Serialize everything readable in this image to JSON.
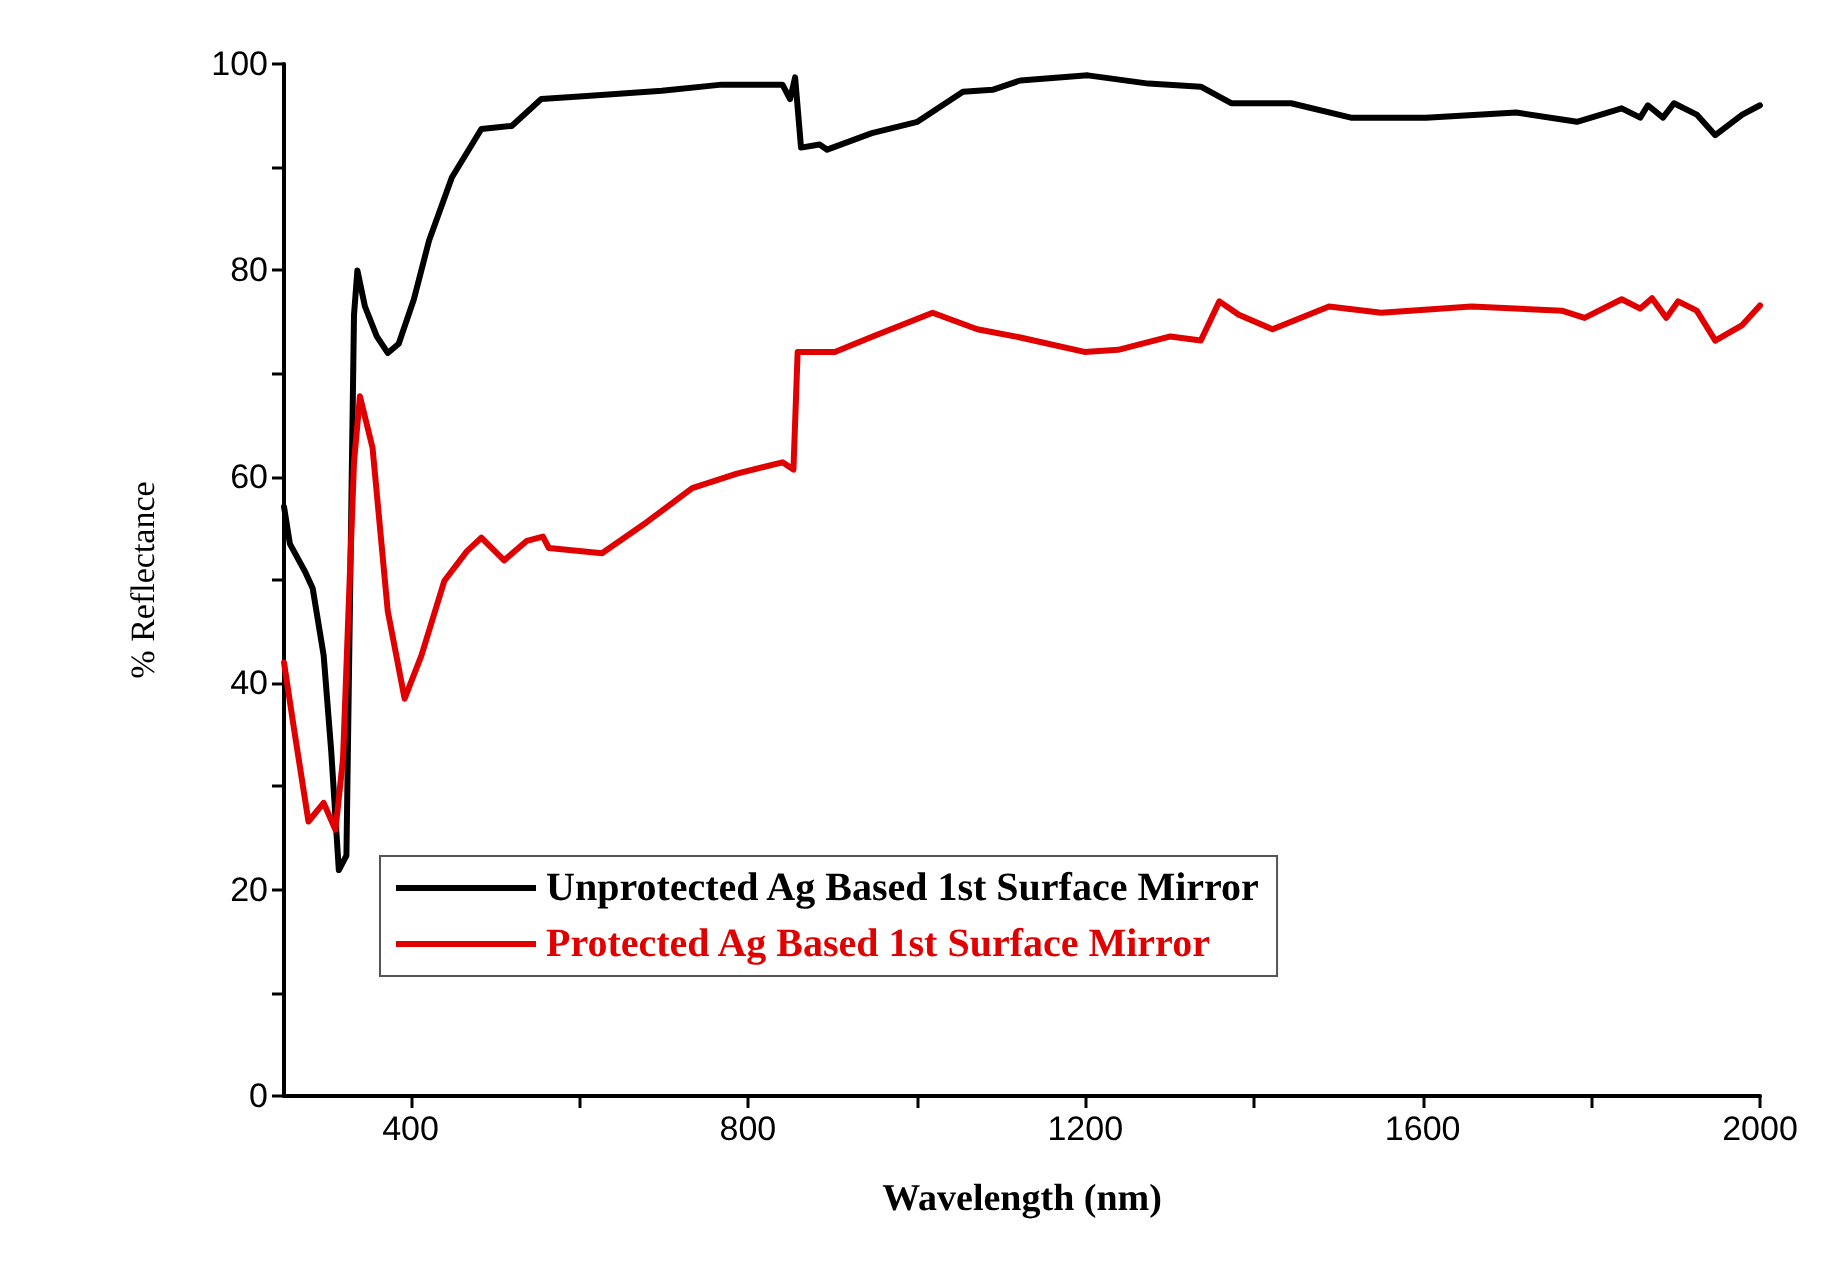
{
  "chart_data": {
    "type": "line",
    "xlabel": "Wavelength (nm)",
    "ylabel": "% Reflectance",
    "xlim": [
      250,
      2000
    ],
    "xticks": [
      400,
      {
        "value": 600,
        "label": null
      },
      800,
      {
        "value": 1000,
        "label": null
      },
      1200,
      {
        "value": 1400,
        "label": null
      },
      1600,
      {
        "value": 1800,
        "label": null
      },
      2000
    ],
    "ylim": [
      0,
      100
    ],
    "yticks": [
      0,
      {
        "value": 10,
        "label": null
      },
      20,
      {
        "value": 30,
        "label": null
      },
      40,
      {
        "value": 50,
        "label": null
      },
      60,
      {
        "value": 70,
        "label": null
      },
      80,
      {
        "value": 90,
        "label": null
      },
      100
    ],
    "grid": false,
    "legend": "bottom left",
    "marker": "none",
    "line_style": "solid",
    "series": [
      {
        "name": "Unprotected Ag Based 1st Surface Mirror",
        "color": "#000000",
        "x": [
          250,
          257,
          275,
          284,
          297,
          306,
          315,
          324,
          333,
          337,
          346,
          360,
          373,
          386,
          404,
          422,
          449,
          484,
          520,
          555,
          609,
          698,
          769,
          841,
          850,
          856,
          863,
          885,
          894,
          947,
          1001,
          1055,
          1090,
          1123,
          1203,
          1275,
          1337,
          1373,
          1444,
          1515,
          1604,
          1711,
          1783,
          1836,
          1858,
          1867,
          1885,
          1898,
          1925,
          1947,
          1979,
          2000
        ],
        "values": [
          57.1,
          53.5,
          50.8,
          49.2,
          42.7,
          33.4,
          21.9,
          23.3,
          75.7,
          80,
          76.5,
          73.6,
          72,
          72.9,
          77.2,
          82.9,
          89,
          93.7,
          94,
          96.6,
          96.9,
          97.4,
          98,
          98,
          96.6,
          98.7,
          91.9,
          92.2,
          91.7,
          93.3,
          94.4,
          97.3,
          97.5,
          98.4,
          98.9,
          98.1,
          97.8,
          96.2,
          96.2,
          94.8,
          94.8,
          95.3,
          94.4,
          95.7,
          94.8,
          96,
          94.8,
          96.2,
          95.1,
          93.1,
          95.1,
          96
        ]
      },
      {
        "name": "Protected Ag Based 1st Surface Mirror",
        "color": "#e00000",
        "x": [
          250,
          262,
          279,
          297,
          311,
          320,
          333,
          340,
          355,
          373,
          393,
          413,
          440,
          467,
          484,
          511,
          538,
          557,
          564,
          627,
          680,
          734,
          787,
          841,
          854,
          859,
          903,
          948,
          1019,
          1072,
          1123,
          1199,
          1239,
          1301,
          1337,
          1359,
          1382,
          1422,
          1489,
          1551,
          1658,
          1765,
          1792,
          1836,
          1858,
          1872,
          1889,
          1903,
          1925,
          1947,
          1979,
          2000
        ],
        "values": [
          42,
          35.5,
          26.6,
          28.4,
          25.8,
          32.7,
          61.4,
          67.8,
          62.8,
          47,
          38.5,
          42.7,
          49.9,
          52.8,
          54.1,
          51.9,
          53.8,
          54.2,
          53.1,
          52.6,
          55.6,
          58.9,
          60.3,
          61.4,
          60.7,
          72.1,
          72.1,
          73.6,
          75.9,
          74.3,
          73.5,
          72.1,
          72.3,
          73.6,
          73.2,
          77,
          75.7,
          74.3,
          76.5,
          75.9,
          76.5,
          76.1,
          75.4,
          77.2,
          76.3,
          77.3,
          75.4,
          77,
          76.1,
          73.2,
          74.7,
          76.6
        ]
      }
    ]
  }
}
